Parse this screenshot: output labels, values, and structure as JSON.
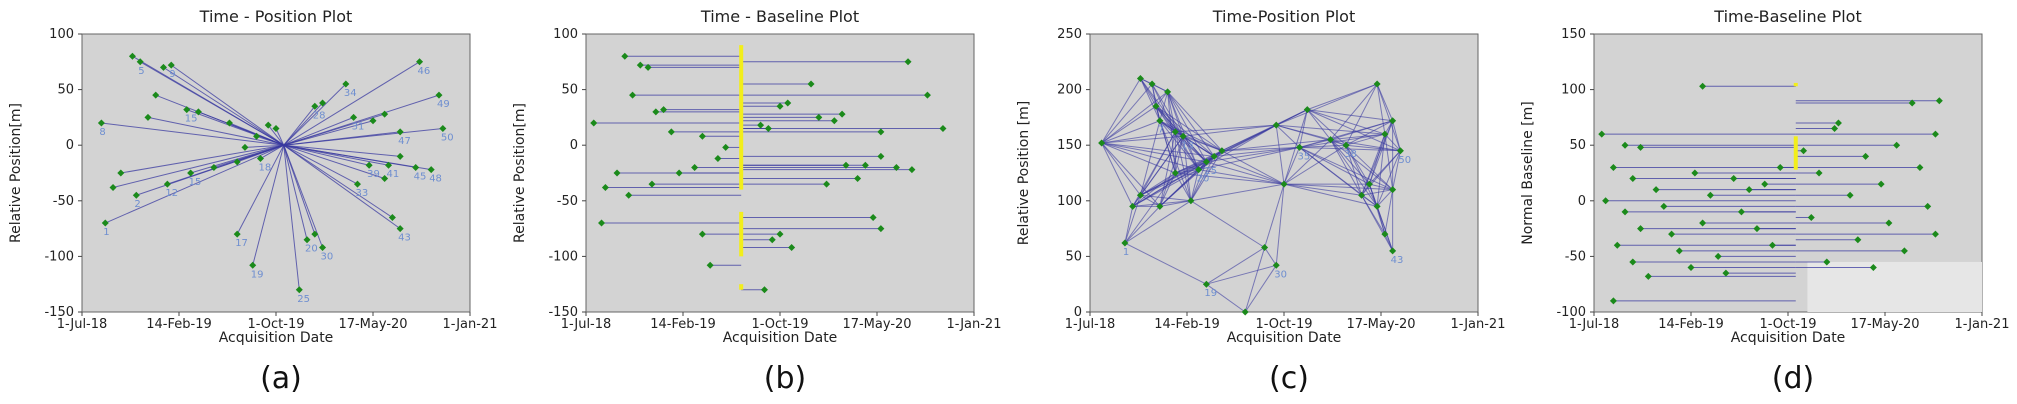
{
  "colors": {
    "plot_bg": "#d3d3d3",
    "line": "#3a3aa0",
    "point": "#1b8a1b",
    "yellow": "#f2ee1a",
    "label": "#6f8fd0"
  },
  "chart_data": [
    {
      "type": "scatter",
      "title": "Time - Position Plot",
      "xlabel": "Acquisition Date",
      "ylabel": "Relative Position[m]",
      "caption": "(a)",
      "xticks": [
        "1-Jul-18",
        "14-Feb-19",
        "1-Oct-19",
        "17-May-20",
        "1-Jan-21"
      ],
      "yticks": [
        "100",
        "50",
        "0",
        "-50",
        "-100",
        "-150"
      ],
      "ylim": [
        -150,
        100
      ],
      "center": {
        "x": 0.52,
        "y": 0
      },
      "points": [
        {
          "x": 0.05,
          "y": 20,
          "label": "8"
        },
        {
          "x": 0.13,
          "y": 80,
          "label": ""
        },
        {
          "x": 0.15,
          "y": 75,
          "label": "5"
        },
        {
          "x": 0.21,
          "y": 70,
          "label": ""
        },
        {
          "x": 0.23,
          "y": 72,
          "label": "9"
        },
        {
          "x": 0.19,
          "y": 45,
          "label": ""
        },
        {
          "x": 0.17,
          "y": 25,
          "label": ""
        },
        {
          "x": 0.27,
          "y": 32,
          "label": "15"
        },
        {
          "x": 0.3,
          "y": 30,
          "label": ""
        },
        {
          "x": 0.38,
          "y": 20,
          "label": ""
        },
        {
          "x": 0.45,
          "y": 8,
          "label": ""
        },
        {
          "x": 0.1,
          "y": -25,
          "label": ""
        },
        {
          "x": 0.08,
          "y": -38,
          "label": ""
        },
        {
          "x": 0.14,
          "y": -45,
          "label": "2"
        },
        {
          "x": 0.22,
          "y": -35,
          "label": "12"
        },
        {
          "x": 0.28,
          "y": -25,
          "label": "15"
        },
        {
          "x": 0.34,
          "y": -20,
          "label": ""
        },
        {
          "x": 0.4,
          "y": -15,
          "label": ""
        },
        {
          "x": 0.06,
          "y": -70,
          "label": "1"
        },
        {
          "x": 0.4,
          "y": -80,
          "label": "17"
        },
        {
          "x": 0.44,
          "y": -108,
          "label": "19"
        },
        {
          "x": 0.58,
          "y": -85,
          "label": "20"
        },
        {
          "x": 0.6,
          "y": -80,
          "label": ""
        },
        {
          "x": 0.62,
          "y": -92,
          "label": "30"
        },
        {
          "x": 0.56,
          "y": -130,
          "label": "25"
        },
        {
          "x": 0.6,
          "y": 35,
          "label": "28"
        },
        {
          "x": 0.62,
          "y": 38,
          "label": ""
        },
        {
          "x": 0.68,
          "y": 55,
          "label": "34"
        },
        {
          "x": 0.7,
          "y": 25,
          "label": "31"
        },
        {
          "x": 0.75,
          "y": 22,
          "label": ""
        },
        {
          "x": 0.78,
          "y": 28,
          "label": ""
        },
        {
          "x": 0.87,
          "y": 75,
          "label": "46"
        },
        {
          "x": 0.92,
          "y": 45,
          "label": "49"
        },
        {
          "x": 0.93,
          "y": 15,
          "label": "50"
        },
        {
          "x": 0.82,
          "y": 12,
          "label": "47"
        },
        {
          "x": 0.74,
          "y": -18,
          "label": "39"
        },
        {
          "x": 0.79,
          "y": -18,
          "label": "41"
        },
        {
          "x": 0.82,
          "y": -10,
          "label": ""
        },
        {
          "x": 0.86,
          "y": -20,
          "label": "45"
        },
        {
          "x": 0.9,
          "y": -22,
          "label": "48"
        },
        {
          "x": 0.8,
          "y": -65,
          "label": ""
        },
        {
          "x": 0.82,
          "y": -75,
          "label": "43"
        },
        {
          "x": 0.71,
          "y": -35,
          "label": "33"
        },
        {
          "x": 0.78,
          "y": -30,
          "label": ""
        },
        {
          "x": 0.48,
          "y": 18,
          "label": ""
        },
        {
          "x": 0.5,
          "y": 15,
          "label": ""
        },
        {
          "x": 0.42,
          "y": -2,
          "label": ""
        },
        {
          "x": 0.46,
          "y": -12,
          "label": "18"
        }
      ]
    },
    {
      "type": "scatter",
      "title": "Time - Baseline Plot",
      "xlabel": "Acquisition Date",
      "ylabel": "Relative Position[m]",
      "caption": "(b)",
      "xticks": [
        "1-Jul-18",
        "14-Feb-19",
        "1-Oct-19",
        "17-May-20",
        "1-Jan-21"
      ],
      "yticks": [
        "100",
        "50",
        "0",
        "-50",
        "-100",
        "-150"
      ],
      "ylim": [
        -150,
        100
      ],
      "master_x": 0.4,
      "yellow_ranges": [
        [
          -40,
          90
        ],
        [
          -100,
          -60
        ],
        [
          -130,
          -125
        ]
      ],
      "points": [
        {
          "x": 0.02,
          "y": 20
        },
        {
          "x": 0.1,
          "y": 80
        },
        {
          "x": 0.14,
          "y": 72
        },
        {
          "x": 0.16,
          "y": 70
        },
        {
          "x": 0.12,
          "y": 45
        },
        {
          "x": 0.18,
          "y": 30
        },
        {
          "x": 0.2,
          "y": 32
        },
        {
          "x": 0.22,
          "y": 12
        },
        {
          "x": 0.3,
          "y": 8
        },
        {
          "x": 0.08,
          "y": -25
        },
        {
          "x": 0.05,
          "y": -38
        },
        {
          "x": 0.11,
          "y": -45
        },
        {
          "x": 0.17,
          "y": -35
        },
        {
          "x": 0.24,
          "y": -25
        },
        {
          "x": 0.28,
          "y": -20
        },
        {
          "x": 0.34,
          "y": -12
        },
        {
          "x": 0.04,
          "y": -70
        },
        {
          "x": 0.3,
          "y": -80
        },
        {
          "x": 0.32,
          "y": -108
        },
        {
          "x": 0.48,
          "y": -85
        },
        {
          "x": 0.5,
          "y": -80
        },
        {
          "x": 0.53,
          "y": -92
        },
        {
          "x": 0.46,
          "y": -130
        },
        {
          "x": 0.5,
          "y": 35
        },
        {
          "x": 0.52,
          "y": 38
        },
        {
          "x": 0.58,
          "y": 55
        },
        {
          "x": 0.6,
          "y": 25
        },
        {
          "x": 0.64,
          "y": 22
        },
        {
          "x": 0.66,
          "y": 28
        },
        {
          "x": 0.83,
          "y": 75
        },
        {
          "x": 0.88,
          "y": 45
        },
        {
          "x": 0.92,
          "y": 15
        },
        {
          "x": 0.76,
          "y": 12
        },
        {
          "x": 0.67,
          "y": -18
        },
        {
          "x": 0.72,
          "y": -18
        },
        {
          "x": 0.76,
          "y": -10
        },
        {
          "x": 0.8,
          "y": -20
        },
        {
          "x": 0.84,
          "y": -22
        },
        {
          "x": 0.74,
          "y": -65
        },
        {
          "x": 0.76,
          "y": -75
        },
        {
          "x": 0.62,
          "y": -35
        },
        {
          "x": 0.7,
          "y": -30
        },
        {
          "x": 0.45,
          "y": 18
        },
        {
          "x": 0.47,
          "y": 15
        },
        {
          "x": 0.36,
          "y": -2
        }
      ]
    },
    {
      "type": "scatter",
      "title": "Time-Position Plot",
      "xlabel": "Acquisition Date",
      "ylabel": "Relative Position [m]",
      "caption": "(c)",
      "xticks": [
        "1-Jul-18",
        "14-Feb-19",
        "1-Oct-19",
        "17-May-20",
        "1-Jan-21"
      ],
      "yticks": [
        "250",
        "200",
        "150",
        "100",
        "50",
        "0"
      ],
      "ylim": [
        0,
        250
      ],
      "points": [
        {
          "x": 0.03,
          "y": 152,
          "label": ""
        },
        {
          "x": 0.09,
          "y": 62,
          "label": "1"
        },
        {
          "x": 0.11,
          "y": 95,
          "label": ""
        },
        {
          "x": 0.13,
          "y": 105,
          "label": ""
        },
        {
          "x": 0.13,
          "y": 210,
          "label": ""
        },
        {
          "x": 0.16,
          "y": 205,
          "label": ""
        },
        {
          "x": 0.17,
          "y": 185,
          "label": ""
        },
        {
          "x": 0.18,
          "y": 172,
          "label": "7"
        },
        {
          "x": 0.2,
          "y": 198,
          "label": ""
        },
        {
          "x": 0.22,
          "y": 162,
          "label": ""
        },
        {
          "x": 0.24,
          "y": 158,
          "label": "13"
        },
        {
          "x": 0.18,
          "y": 95,
          "label": ""
        },
        {
          "x": 0.22,
          "y": 125,
          "label": ""
        },
        {
          "x": 0.26,
          "y": 100,
          "label": ""
        },
        {
          "x": 0.28,
          "y": 128,
          "label": "20"
        },
        {
          "x": 0.3,
          "y": 135,
          "label": "25"
        },
        {
          "x": 0.32,
          "y": 140,
          "label": ""
        },
        {
          "x": 0.34,
          "y": 145,
          "label": ""
        },
        {
          "x": 0.3,
          "y": 25,
          "label": "19"
        },
        {
          "x": 0.4,
          "y": 0,
          "label": ""
        },
        {
          "x": 0.45,
          "y": 58,
          "label": ""
        },
        {
          "x": 0.48,
          "y": 42,
          "label": "30"
        },
        {
          "x": 0.48,
          "y": 168,
          "label": ""
        },
        {
          "x": 0.54,
          "y": 148,
          "label": "35"
        },
        {
          "x": 0.5,
          "y": 115,
          "label": ""
        },
        {
          "x": 0.56,
          "y": 182,
          "label": ""
        },
        {
          "x": 0.62,
          "y": 155,
          "label": ""
        },
        {
          "x": 0.66,
          "y": 150,
          "label": "38"
        },
        {
          "x": 0.7,
          "y": 105,
          "label": ""
        },
        {
          "x": 0.74,
          "y": 95,
          "label": ""
        },
        {
          "x": 0.72,
          "y": 115,
          "label": ""
        },
        {
          "x": 0.76,
          "y": 70,
          "label": ""
        },
        {
          "x": 0.78,
          "y": 55,
          "label": "43"
        },
        {
          "x": 0.74,
          "y": 205,
          "label": ""
        },
        {
          "x": 0.78,
          "y": 172,
          "label": ""
        },
        {
          "x": 0.8,
          "y": 145,
          "label": "50"
        },
        {
          "x": 0.78,
          "y": 110,
          "label": ""
        },
        {
          "x": 0.76,
          "y": 160,
          "label": ""
        }
      ]
    },
    {
      "type": "scatter",
      "title": "Time-Baseline Plot",
      "xlabel": "Acquisition Date",
      "ylabel": "Normal Baseline [m]",
      "caption": "(d)",
      "xticks": [
        "1-Jul-18",
        "14-Feb-19",
        "1-Oct-19",
        "17-May-20",
        "1-Jan-21"
      ],
      "yticks": [
        "150",
        "100",
        "50",
        "0",
        "-50",
        "-100"
      ],
      "ylim": [
        -100,
        150
      ],
      "master_x": 0.52,
      "yellow_ranges": [
        [
          28,
          58
        ],
        [
          103,
          106
        ]
      ],
      "points": [
        {
          "x": 0.02,
          "y": 60
        },
        {
          "x": 0.08,
          "y": 50
        },
        {
          "x": 0.12,
          "y": 48
        },
        {
          "x": 0.05,
          "y": 30
        },
        {
          "x": 0.1,
          "y": 20
        },
        {
          "x": 0.03,
          "y": 0
        },
        {
          "x": 0.08,
          "y": -10
        },
        {
          "x": 0.12,
          "y": -25
        },
        {
          "x": 0.06,
          "y": -40
        },
        {
          "x": 0.1,
          "y": -55
        },
        {
          "x": 0.14,
          "y": -68
        },
        {
          "x": 0.05,
          "y": -90
        },
        {
          "x": 0.16,
          "y": 10
        },
        {
          "x": 0.18,
          "y": -5
        },
        {
          "x": 0.2,
          "y": -30
        },
        {
          "x": 0.22,
          "y": -45
        },
        {
          "x": 0.25,
          "y": -60
        },
        {
          "x": 0.28,
          "y": -20
        },
        {
          "x": 0.3,
          "y": 5
        },
        {
          "x": 0.26,
          "y": 25
        },
        {
          "x": 0.32,
          "y": -50
        },
        {
          "x": 0.34,
          "y": -65
        },
        {
          "x": 0.28,
          "y": 103
        },
        {
          "x": 0.36,
          "y": 20
        },
        {
          "x": 0.38,
          "y": -10
        },
        {
          "x": 0.4,
          "y": 10
        },
        {
          "x": 0.42,
          "y": -25
        },
        {
          "x": 0.44,
          "y": 15
        },
        {
          "x": 0.46,
          "y": -40
        },
        {
          "x": 0.48,
          "y": 30
        },
        {
          "x": 0.54,
          "y": 45
        },
        {
          "x": 0.56,
          "y": -15
        },
        {
          "x": 0.58,
          "y": 25
        },
        {
          "x": 0.6,
          "y": -55
        },
        {
          "x": 0.62,
          "y": 65
        },
        {
          "x": 0.63,
          "y": 70
        },
        {
          "x": 0.66,
          "y": 5
        },
        {
          "x": 0.68,
          "y": -35
        },
        {
          "x": 0.7,
          "y": 40
        },
        {
          "x": 0.72,
          "y": -60
        },
        {
          "x": 0.74,
          "y": 15
        },
        {
          "x": 0.76,
          "y": -20
        },
        {
          "x": 0.78,
          "y": 50
        },
        {
          "x": 0.8,
          "y": -45
        },
        {
          "x": 0.82,
          "y": 88
        },
        {
          "x": 0.84,
          "y": 30
        },
        {
          "x": 0.86,
          "y": -5
        },
        {
          "x": 0.88,
          "y": 60
        },
        {
          "x": 0.88,
          "y": -30
        },
        {
          "x": 0.89,
          "y": 90
        }
      ]
    }
  ]
}
